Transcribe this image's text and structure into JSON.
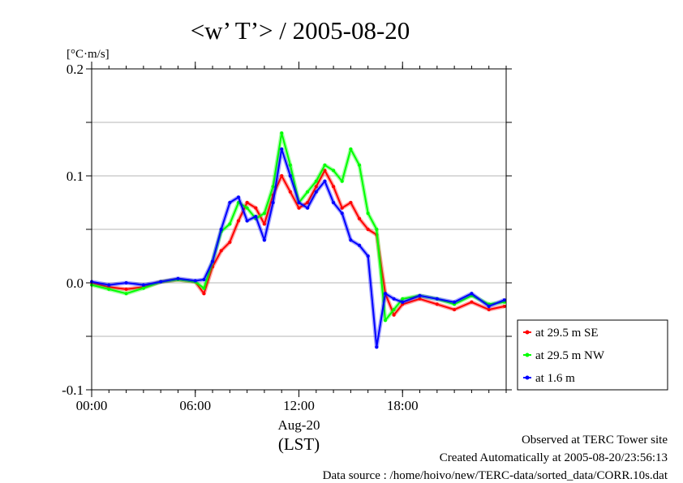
{
  "chart_data": {
    "type": "line",
    "title": "<w’ T’> / 2005-08-20",
    "ylabel": "[°C·m/s]",
    "xlabel": "(LST)",
    "x_date_label": "Aug-20",
    "ylim": [
      -0.1,
      0.2
    ],
    "xlim": [
      "00:00",
      "24:00"
    ],
    "y_ticks": [
      -0.1,
      0.0,
      0.1,
      0.2
    ],
    "y_tick_labels": [
      "-0.1",
      "0.0",
      "0.1",
      "0.2"
    ],
    "x_ticks": [
      "00:00",
      "06:00",
      "12:00",
      "18:00"
    ],
    "grid": "horizontal",
    "legend_position": "right",
    "x_hours": [
      0,
      1,
      2,
      3,
      4,
      5,
      6,
      6.5,
      7,
      7.5,
      8,
      8.5,
      9,
      9.5,
      10,
      10.5,
      11,
      11.5,
      12,
      12.5,
      13,
      13.5,
      14,
      14.5,
      15,
      15.5,
      16,
      16.5,
      17,
      17.5,
      18,
      19,
      20,
      21,
      22,
      23,
      23.9
    ],
    "series": [
      {
        "name": "at 29.5 m SE",
        "color": "#ff0000",
        "values": [
          0.0,
          -0.004,
          -0.006,
          -0.004,
          0.001,
          0.003,
          0.001,
          -0.01,
          0.015,
          0.03,
          0.038,
          0.058,
          0.075,
          0.07,
          0.055,
          0.082,
          0.1,
          0.085,
          0.07,
          0.075,
          0.09,
          0.105,
          0.09,
          0.07,
          0.075,
          0.06,
          0.05,
          0.045,
          -0.01,
          -0.03,
          -0.02,
          -0.015,
          -0.02,
          -0.025,
          -0.018,
          -0.025,
          -0.022
        ]
      },
      {
        "name": "at 29.5 m NW",
        "color": "#00ff00",
        "values": [
          -0.002,
          -0.006,
          -0.01,
          -0.005,
          0.001,
          0.003,
          0.001,
          -0.005,
          0.02,
          0.048,
          0.055,
          0.075,
          0.07,
          0.06,
          0.065,
          0.09,
          0.14,
          0.11,
          0.075,
          0.085,
          0.095,
          0.11,
          0.105,
          0.095,
          0.125,
          0.11,
          0.065,
          0.05,
          -0.035,
          -0.025,
          -0.015,
          -0.012,
          -0.015,
          -0.02,
          -0.012,
          -0.02,
          -0.018
        ]
      },
      {
        "name": "at 1.6 m",
        "color": "#0000ff",
        "values": [
          0.001,
          -0.002,
          0.0,
          -0.002,
          0.001,
          0.004,
          0.002,
          0.003,
          0.02,
          0.05,
          0.075,
          0.08,
          0.058,
          0.062,
          0.04,
          0.075,
          0.125,
          0.1,
          0.075,
          0.07,
          0.085,
          0.095,
          0.075,
          0.065,
          0.04,
          0.035,
          0.025,
          -0.06,
          -0.01,
          -0.015,
          -0.018,
          -0.012,
          -0.015,
          -0.018,
          -0.01,
          -0.022,
          -0.016
        ]
      }
    ]
  },
  "footer": {
    "line1": "Observed at TERC Tower site",
    "line2": "Created Automatically at 2005-08-20/23:56:13",
    "line3": "Data source : /home/hoivo/new/TERC-data/sorted_data/CORR.10s.dat"
  }
}
